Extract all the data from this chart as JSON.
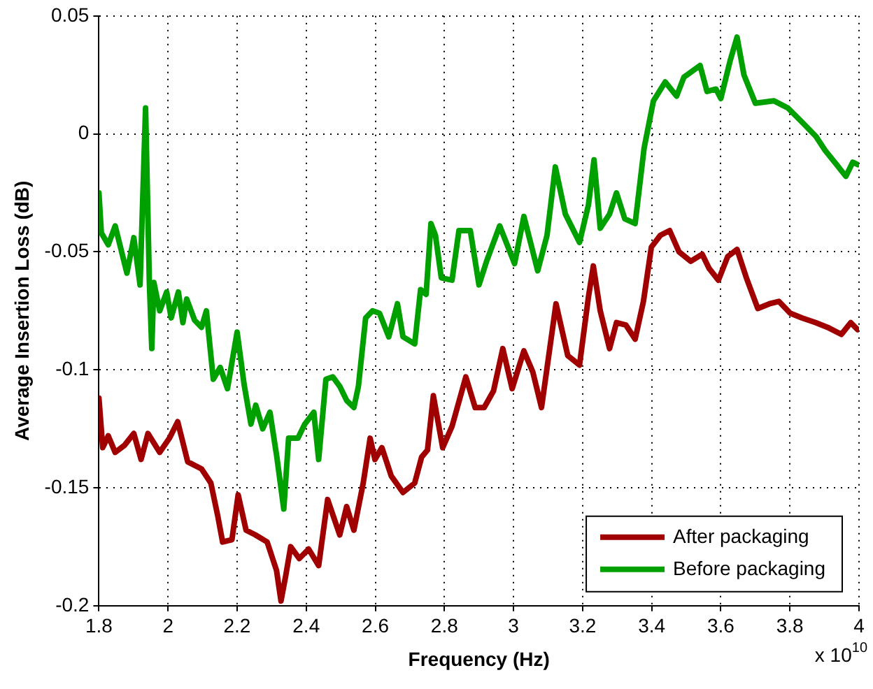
{
  "chart_data": {
    "type": "line",
    "xlabel": "Frequency (Hz)",
    "ylabel": "Average Insertion Loss (dB)",
    "annotations": [
      "x 10$^{10}$"
    ],
    "xlim": [
      1.8,
      4
    ],
    "xticks": [
      1.8,
      2,
      2.2,
      2.4,
      2.6,
      2.8,
      3,
      3.2,
      3.4,
      3.6,
      3.8,
      4
    ],
    "ylim": [
      -0.2,
      0.05
    ],
    "yticks": [
      -0.2,
      -0.15,
      -0.1,
      -0.05,
      0,
      0.05
    ],
    "grid": true,
    "legend": "bottom right",
    "marker": "none",
    "line_style": "solid",
    "series": [
      {
        "name": "After packaging",
        "color": "#a00000",
        "x": [
          1.8,
          1.811,
          1.827,
          1.847,
          1.874,
          1.901,
          1.922,
          1.942,
          1.976,
          2.004,
          2.028,
          2.057,
          2.097,
          2.124,
          2.144,
          2.158,
          2.185,
          2.203,
          2.226,
          2.253,
          2.287,
          2.314,
          2.327,
          2.341,
          2.355,
          2.38,
          2.407,
          2.436,
          2.462,
          2.497,
          2.517,
          2.538,
          2.565,
          2.585,
          2.599,
          2.619,
          2.646,
          2.68,
          2.714,
          2.734,
          2.751,
          2.768,
          2.795,
          2.822,
          2.862,
          2.889,
          2.915,
          2.942,
          2.969,
          2.996,
          3.03,
          3.056,
          3.081,
          3.123,
          3.157,
          3.191,
          3.217,
          3.231,
          3.251,
          3.278,
          3.298,
          3.325,
          3.352,
          3.376,
          3.399,
          3.425,
          3.452,
          3.479,
          3.513,
          3.546,
          3.566,
          3.593,
          3.62,
          3.647,
          3.674,
          3.707,
          3.741,
          3.768,
          3.801,
          3.835,
          3.875,
          3.909,
          3.949,
          3.976,
          3.996
        ],
        "values": [
          -0.112,
          -0.133,
          -0.128,
          -0.135,
          -0.132,
          -0.127,
          -0.138,
          -0.127,
          -0.135,
          -0.129,
          -0.122,
          -0.139,
          -0.142,
          -0.148,
          -0.162,
          -0.173,
          -0.172,
          -0.153,
          -0.168,
          -0.17,
          -0.173,
          -0.185,
          -0.198,
          -0.187,
          -0.175,
          -0.18,
          -0.176,
          -0.183,
          -0.155,
          -0.17,
          -0.158,
          -0.168,
          -0.148,
          -0.129,
          -0.138,
          -0.133,
          -0.145,
          -0.152,
          -0.148,
          -0.137,
          -0.134,
          -0.111,
          -0.133,
          -0.124,
          -0.103,
          -0.116,
          -0.116,
          -0.109,
          -0.091,
          -0.108,
          -0.092,
          -0.101,
          -0.116,
          -0.072,
          -0.094,
          -0.098,
          -0.069,
          -0.056,
          -0.075,
          -0.091,
          -0.08,
          -0.081,
          -0.087,
          -0.071,
          -0.048,
          -0.043,
          -0.041,
          -0.05,
          -0.054,
          -0.051,
          -0.057,
          -0.062,
          -0.052,
          -0.049,
          -0.061,
          -0.074,
          -0.072,
          -0.071,
          -0.076,
          -0.078,
          -0.08,
          -0.082,
          -0.085,
          -0.08,
          -0.083
        ]
      },
      {
        "name": "Before packaging",
        "color": "#00a000",
        "x": [
          1.8,
          1.807,
          1.827,
          1.847,
          1.881,
          1.901,
          1.919,
          1.935,
          1.946,
          1.953,
          1.959,
          1.976,
          1.996,
          2.009,
          2.03,
          2.043,
          2.054,
          2.077,
          2.097,
          2.111,
          2.131,
          2.151,
          2.172,
          2.2,
          2.22,
          2.24,
          2.254,
          2.274,
          2.295,
          2.315,
          2.335,
          2.349,
          2.376,
          2.396,
          2.422,
          2.436,
          2.457,
          2.477,
          2.497,
          2.517,
          2.538,
          2.551,
          2.572,
          2.592,
          2.612,
          2.639,
          2.664,
          2.68,
          2.714,
          2.731,
          2.747,
          2.761,
          2.774,
          2.791,
          2.822,
          2.842,
          2.875,
          2.9,
          2.922,
          2.96,
          3.003,
          3.03,
          3.07,
          3.097,
          3.121,
          3.15,
          3.191,
          3.217,
          3.233,
          3.251,
          3.278,
          3.298,
          3.322,
          3.352,
          3.378,
          3.405,
          3.439,
          3.472,
          3.493,
          3.54,
          3.56,
          3.586,
          3.6,
          3.627,
          3.647,
          3.667,
          3.7,
          3.754,
          3.794,
          3.835,
          3.875,
          3.902,
          3.935,
          3.962,
          3.982,
          3.996
        ],
        "values": [
          -0.025,
          -0.042,
          -0.047,
          -0.039,
          -0.059,
          -0.044,
          -0.064,
          0.011,
          -0.063,
          -0.091,
          -0.063,
          -0.075,
          -0.067,
          -0.078,
          -0.067,
          -0.08,
          -0.07,
          -0.079,
          -0.082,
          -0.075,
          -0.104,
          -0.099,
          -0.108,
          -0.084,
          -0.106,
          -0.123,
          -0.115,
          -0.125,
          -0.118,
          -0.137,
          -0.159,
          -0.129,
          -0.129,
          -0.123,
          -0.118,
          -0.138,
          -0.104,
          -0.103,
          -0.107,
          -0.113,
          -0.116,
          -0.107,
          -0.078,
          -0.075,
          -0.076,
          -0.086,
          -0.072,
          -0.086,
          -0.089,
          -0.066,
          -0.068,
          -0.038,
          -0.043,
          -0.061,
          -0.062,
          -0.041,
          -0.041,
          -0.064,
          -0.054,
          -0.039,
          -0.055,
          -0.035,
          -0.058,
          -0.043,
          -0.014,
          -0.034,
          -0.046,
          -0.03,
          -0.011,
          -0.04,
          -0.034,
          -0.025,
          -0.036,
          -0.038,
          -0.006,
          0.014,
          0.022,
          0.016,
          0.024,
          0.029,
          0.018,
          0.019,
          0.015,
          0.031,
          0.041,
          0.025,
          0.013,
          0.014,
          0.011,
          0.005,
          -0.001,
          -0.007,
          -0.013,
          -0.018,
          -0.012,
          -0.013
        ]
      }
    ]
  }
}
